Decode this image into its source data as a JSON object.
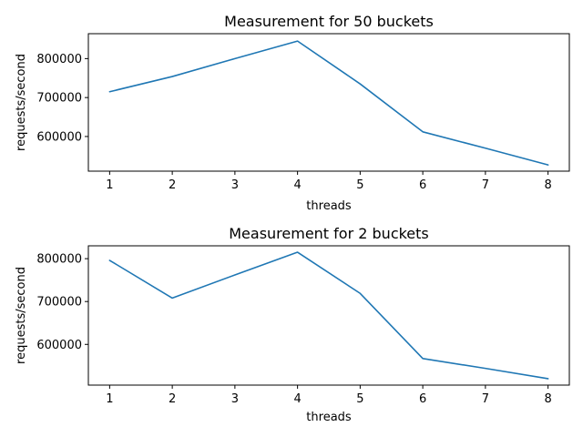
{
  "chart_data": [
    {
      "type": "line",
      "title": "Measurement for 50 buckets",
      "xlabel": "threads",
      "ylabel": "requests/second",
      "x": [
        1,
        2,
        3,
        4,
        5,
        6,
        7,
        8
      ],
      "series": [
        {
          "values": [
            715000,
            754000,
            800000,
            845000,
            735000,
            612000,
            570000,
            527000
          ],
          "color": "#1f77b4"
        }
      ],
      "xlim": [
        0.66,
        8.34
      ],
      "ylim": [
        511000,
        864000
      ],
      "xticks": [
        "1",
        "2",
        "3",
        "4",
        "5",
        "6",
        "7",
        "8"
      ],
      "yticks": [
        {
          "value": 600000,
          "label": "600000"
        },
        {
          "value": 700000,
          "label": "700000"
        },
        {
          "value": 800000,
          "label": "800000"
        }
      ],
      "grid": false
    },
    {
      "type": "line",
      "title": "Measurement for 2 buckets",
      "xlabel": "threads",
      "ylabel": "requests/second",
      "x": [
        1,
        2,
        3,
        4,
        5,
        6,
        7,
        8
      ],
      "series": [
        {
          "values": [
            796000,
            708000,
            762000,
            815000,
            719000,
            567000,
            544000,
            520000
          ],
          "color": "#1f77b4"
        }
      ],
      "xlim": [
        0.66,
        8.34
      ],
      "ylim": [
        505000,
        830000
      ],
      "xticks": [
        "1",
        "2",
        "3",
        "4",
        "5",
        "6",
        "7",
        "8"
      ],
      "yticks": [
        {
          "value": 600000,
          "label": "600000"
        },
        {
          "value": 700000,
          "label": "700000"
        },
        {
          "value": 800000,
          "label": "800000"
        }
      ],
      "grid": false
    }
  ]
}
